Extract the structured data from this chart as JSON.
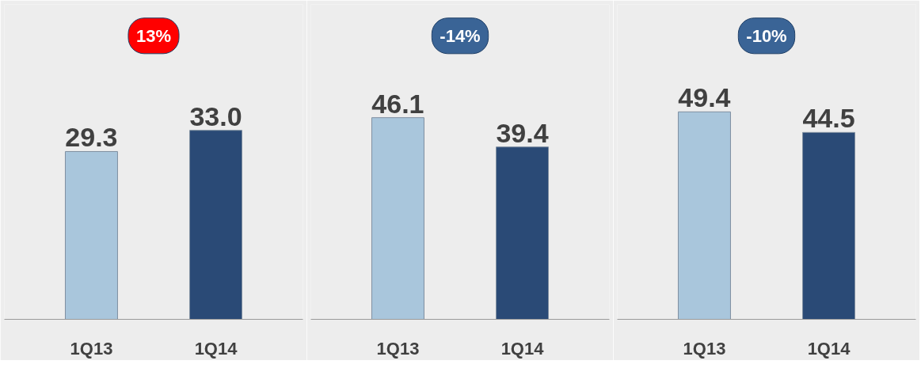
{
  "chart_data": [
    {
      "type": "bar",
      "categories": [
        "1Q13",
        "1Q14"
      ],
      "values": [
        29.3,
        33.0
      ],
      "colors": [
        "#a9c6dc",
        "#2a4a76"
      ],
      "value_labels": [
        "29.3",
        "33.0"
      ],
      "ylim": [
        0,
        55
      ],
      "annotations": [
        "13%"
      ]
    },
    {
      "type": "bar",
      "categories": [
        "1Q13",
        "1Q14"
      ],
      "values": [
        46.1,
        39.4
      ],
      "colors": [
        "#a9c6dc",
        "#2a4a76"
      ],
      "value_labels": [
        "46.1",
        "39.4"
      ],
      "ylim": [
        0,
        72
      ],
      "annotations": [
        "-14%"
      ]
    },
    {
      "type": "bar",
      "categories": [
        "1Q13",
        "1Q14"
      ],
      "values": [
        49.4,
        44.5
      ],
      "colors": [
        "#a9c6dc",
        "#2a4a76"
      ],
      "value_labels": [
        "49.4",
        "44.5"
      ],
      "ylim": [
        0,
        75
      ],
      "annotations": [
        "-10%"
      ]
    }
  ]
}
